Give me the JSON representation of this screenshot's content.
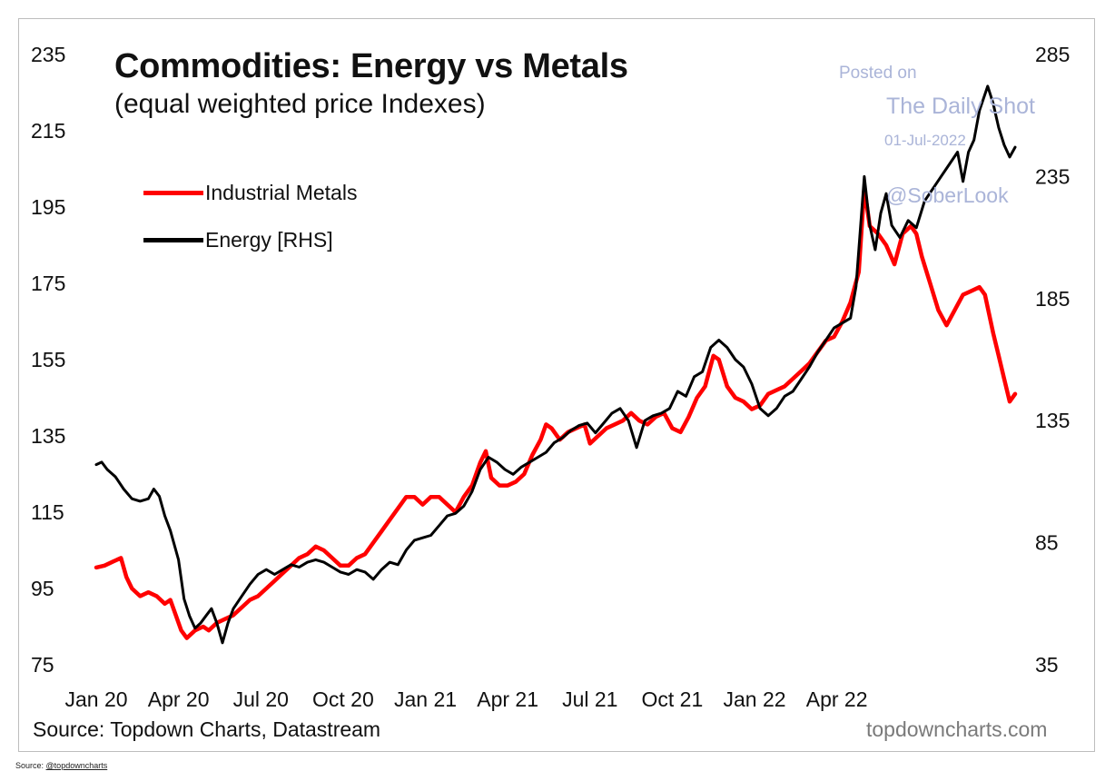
{
  "footer": {
    "source_label": "Source:",
    "source_link": "@topdowncharts"
  },
  "watermark": {
    "line1": "Posted on",
    "line2": "The Daily Shot",
    "line3": "01-Jul-2022",
    "line4": "@SoberLook"
  },
  "chart_data": {
    "type": "line",
    "title": "Commodities: Energy vs Metals",
    "subtitle": "(equal weighted price Indexes)",
    "source": "Source: Topdown Charts, Datastream",
    "brand": "topdowncharts.com",
    "x_tick_labels": [
      "Jan 20",
      "Apr 20",
      "Jul 20",
      "Oct 20",
      "Jan 21",
      "Apr 21",
      "Jul 21",
      "Oct 21",
      "Jan 22",
      "Apr 22"
    ],
    "y_left": {
      "ticks": [
        235,
        215,
        195,
        175,
        155,
        135,
        115,
        95,
        75
      ],
      "range": [
        75,
        235
      ]
    },
    "y_right": {
      "ticks": [
        285,
        235,
        185,
        135,
        85,
        35
      ],
      "range": [
        35,
        285
      ]
    },
    "legend": [
      {
        "name": "Industrial Metals",
        "color": "#ff0000"
      },
      {
        "name": "Energy [RHS]",
        "color": "#000000"
      }
    ],
    "series": [
      {
        "name": "Industrial Metals",
        "axis": "left",
        "color": "#ff0000",
        "points": [
          [
            0,
            100.5
          ],
          [
            0.3,
            101
          ],
          [
            0.6,
            102
          ],
          [
            0.9,
            103
          ],
          [
            1.1,
            98
          ],
          [
            1.3,
            95
          ],
          [
            1.6,
            93
          ],
          [
            1.9,
            94
          ],
          [
            2.2,
            93
          ],
          [
            2.5,
            91
          ],
          [
            2.7,
            92
          ],
          [
            2.9,
            88
          ],
          [
            3.1,
            84
          ],
          [
            3.3,
            82
          ],
          [
            3.6,
            84
          ],
          [
            3.9,
            85
          ],
          [
            4.1,
            84
          ],
          [
            4.4,
            86
          ],
          [
            4.7,
            87
          ],
          [
            5.0,
            88
          ],
          [
            5.3,
            90
          ],
          [
            5.6,
            92
          ],
          [
            5.9,
            93
          ],
          [
            6.2,
            95
          ],
          [
            6.5,
            97
          ],
          [
            6.8,
            99
          ],
          [
            7.1,
            101
          ],
          [
            7.4,
            103
          ],
          [
            7.7,
            104
          ],
          [
            8.0,
            106
          ],
          [
            8.3,
            105
          ],
          [
            8.6,
            103
          ],
          [
            8.9,
            101
          ],
          [
            9.2,
            101
          ],
          [
            9.5,
            103
          ],
          [
            9.8,
            104
          ],
          [
            10.1,
            107
          ],
          [
            10.4,
            110
          ],
          [
            10.7,
            113
          ],
          [
            11.0,
            116
          ],
          [
            11.3,
            119
          ],
          [
            11.6,
            119
          ],
          [
            11.9,
            117
          ],
          [
            12.2,
            119
          ],
          [
            12.5,
            119
          ],
          [
            12.8,
            117
          ],
          [
            13.1,
            115
          ],
          [
            13.4,
            119
          ],
          [
            13.7,
            122
          ],
          [
            14.0,
            128
          ],
          [
            14.2,
            131
          ],
          [
            14.4,
            124
          ],
          [
            14.7,
            122
          ],
          [
            15.0,
            122
          ],
          [
            15.3,
            123
          ],
          [
            15.6,
            125
          ],
          [
            15.9,
            130
          ],
          [
            16.2,
            134
          ],
          [
            16.4,
            138
          ],
          [
            16.6,
            137
          ],
          [
            16.9,
            134
          ],
          [
            17.2,
            136
          ],
          [
            17.5,
            137
          ],
          [
            17.8,
            138
          ],
          [
            18.0,
            133
          ],
          [
            18.3,
            135
          ],
          [
            18.6,
            137
          ],
          [
            18.9,
            138
          ],
          [
            19.2,
            139
          ],
          [
            19.5,
            141
          ],
          [
            19.8,
            139
          ],
          [
            20.1,
            138
          ],
          [
            20.4,
            140
          ],
          [
            20.7,
            141
          ],
          [
            21.0,
            137
          ],
          [
            21.3,
            136
          ],
          [
            21.6,
            140
          ],
          [
            21.9,
            145
          ],
          [
            22.2,
            148
          ],
          [
            22.5,
            156
          ],
          [
            22.7,
            155
          ],
          [
            23.0,
            148
          ],
          [
            23.3,
            145
          ],
          [
            23.6,
            144
          ],
          [
            23.9,
            142
          ],
          [
            24.2,
            143
          ],
          [
            24.5,
            146
          ],
          [
            24.8,
            147
          ],
          [
            25.1,
            148
          ],
          [
            25.4,
            150
          ],
          [
            25.7,
            152
          ],
          [
            26.0,
            154
          ],
          [
            26.3,
            157
          ],
          [
            26.6,
            160
          ],
          [
            26.9,
            161
          ],
          [
            27.2,
            165
          ],
          [
            27.5,
            170
          ],
          [
            27.8,
            178
          ],
          [
            28.0,
            200
          ],
          [
            28.2,
            190
          ],
          [
            28.5,
            188
          ],
          [
            28.8,
            185
          ],
          [
            29.1,
            180
          ],
          [
            29.4,
            188
          ],
          [
            29.7,
            190
          ],
          [
            29.9,
            188
          ],
          [
            30.1,
            182
          ],
          [
            30.4,
            175
          ],
          [
            30.7,
            168
          ],
          [
            31.0,
            164
          ],
          [
            31.3,
            168
          ],
          [
            31.6,
            172
          ],
          [
            31.9,
            173
          ],
          [
            32.2,
            174
          ],
          [
            32.4,
            172
          ],
          [
            32.7,
            162
          ],
          [
            32.9,
            156
          ],
          [
            33.1,
            150
          ],
          [
            33.3,
            144
          ],
          [
            33.5,
            146
          ]
        ]
      },
      {
        "name": "Energy [RHS]",
        "axis": "right",
        "color": "#000000",
        "points": [
          [
            0,
            117
          ],
          [
            0.2,
            118
          ],
          [
            0.4,
            115
          ],
          [
            0.7,
            112
          ],
          [
            1.0,
            107
          ],
          [
            1.3,
            103
          ],
          [
            1.6,
            102
          ],
          [
            1.9,
            103
          ],
          [
            2.1,
            107
          ],
          [
            2.3,
            104
          ],
          [
            2.5,
            96
          ],
          [
            2.7,
            90
          ],
          [
            3.0,
            78
          ],
          [
            3.2,
            62
          ],
          [
            3.4,
            55
          ],
          [
            3.6,
            50
          ],
          [
            3.8,
            52
          ],
          [
            4.0,
            55
          ],
          [
            4.2,
            58
          ],
          [
            4.4,
            52
          ],
          [
            4.6,
            44
          ],
          [
            4.8,
            52
          ],
          [
            5.0,
            58
          ],
          [
            5.3,
            63
          ],
          [
            5.6,
            68
          ],
          [
            5.9,
            72
          ],
          [
            6.2,
            74
          ],
          [
            6.5,
            72
          ],
          [
            6.8,
            74
          ],
          [
            7.1,
            76
          ],
          [
            7.4,
            75
          ],
          [
            7.7,
            77
          ],
          [
            8.0,
            78
          ],
          [
            8.3,
            77
          ],
          [
            8.6,
            75
          ],
          [
            8.9,
            73
          ],
          [
            9.2,
            72
          ],
          [
            9.5,
            74
          ],
          [
            9.8,
            73
          ],
          [
            10.1,
            70
          ],
          [
            10.4,
            74
          ],
          [
            10.7,
            77
          ],
          [
            11.0,
            76
          ],
          [
            11.3,
            82
          ],
          [
            11.6,
            86
          ],
          [
            11.9,
            87
          ],
          [
            12.2,
            88
          ],
          [
            12.5,
            92
          ],
          [
            12.8,
            96
          ],
          [
            13.1,
            97
          ],
          [
            13.4,
            100
          ],
          [
            13.7,
            106
          ],
          [
            14.0,
            115
          ],
          [
            14.3,
            120
          ],
          [
            14.6,
            118
          ],
          [
            14.9,
            115
          ],
          [
            15.2,
            113
          ],
          [
            15.5,
            116
          ],
          [
            15.8,
            118
          ],
          [
            16.1,
            120
          ],
          [
            16.4,
            122
          ],
          [
            16.7,
            126
          ],
          [
            17.0,
            128
          ],
          [
            17.3,
            131
          ],
          [
            17.6,
            133
          ],
          [
            17.9,
            134
          ],
          [
            18.2,
            130
          ],
          [
            18.5,
            134
          ],
          [
            18.8,
            138
          ],
          [
            19.1,
            140
          ],
          [
            19.4,
            135
          ],
          [
            19.7,
            124
          ],
          [
            20.0,
            135
          ],
          [
            20.3,
            137
          ],
          [
            20.6,
            138
          ],
          [
            20.9,
            140
          ],
          [
            21.2,
            147
          ],
          [
            21.5,
            145
          ],
          [
            21.8,
            153
          ],
          [
            22.1,
            155
          ],
          [
            22.4,
            165
          ],
          [
            22.7,
            168
          ],
          [
            23.0,
            165
          ],
          [
            23.3,
            160
          ],
          [
            23.6,
            157
          ],
          [
            23.9,
            150
          ],
          [
            24.2,
            140
          ],
          [
            24.5,
            137
          ],
          [
            24.8,
            140
          ],
          [
            25.1,
            145
          ],
          [
            25.4,
            147
          ],
          [
            25.7,
            152
          ],
          [
            26.0,
            157
          ],
          [
            26.3,
            163
          ],
          [
            26.6,
            168
          ],
          [
            26.9,
            173
          ],
          [
            27.2,
            175
          ],
          [
            27.5,
            177
          ],
          [
            27.7,
            190
          ],
          [
            28.0,
            235
          ],
          [
            28.2,
            215
          ],
          [
            28.4,
            205
          ],
          [
            28.6,
            220
          ],
          [
            28.8,
            228
          ],
          [
            29.0,
            215
          ],
          [
            29.3,
            210
          ],
          [
            29.6,
            217
          ],
          [
            29.9,
            214
          ],
          [
            30.2,
            225
          ],
          [
            30.5,
            230
          ],
          [
            30.8,
            235
          ],
          [
            31.1,
            240
          ],
          [
            31.4,
            245
          ],
          [
            31.6,
            233
          ],
          [
            31.8,
            245
          ],
          [
            32.0,
            250
          ],
          [
            32.2,
            262
          ],
          [
            32.5,
            272
          ],
          [
            32.7,
            265
          ],
          [
            32.9,
            255
          ],
          [
            33.1,
            248
          ],
          [
            33.3,
            243
          ],
          [
            33.5,
            247
          ]
        ]
      }
    ]
  }
}
